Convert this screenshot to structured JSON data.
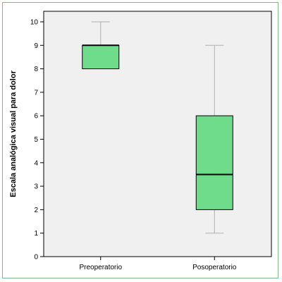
{
  "chart_data": {
    "type": "box",
    "ylabel": "Escala analógica visual para dolor",
    "xlabel": "",
    "ylim": [
      0,
      10
    ],
    "yticks": [
      0,
      1,
      2,
      3,
      4,
      5,
      6,
      7,
      8,
      9,
      10
    ],
    "categories": [
      "Preoperatorio",
      "Posoperatorio"
    ],
    "boxes": [
      {
        "category": "Preoperatorio",
        "whisker_low": 8,
        "q1": 8,
        "median": 9,
        "q3": 9,
        "whisker_high": 10
      },
      {
        "category": "Posoperatorio",
        "whisker_low": 1,
        "q1": 2,
        "median": 3.5,
        "q3": 6,
        "whisker_high": 9
      }
    ],
    "colors": {
      "box_fill": "#6fdc8c",
      "plot_background": "#f0f0f0",
      "frame_border": "#7fb98a"
    },
    "grid": false
  }
}
